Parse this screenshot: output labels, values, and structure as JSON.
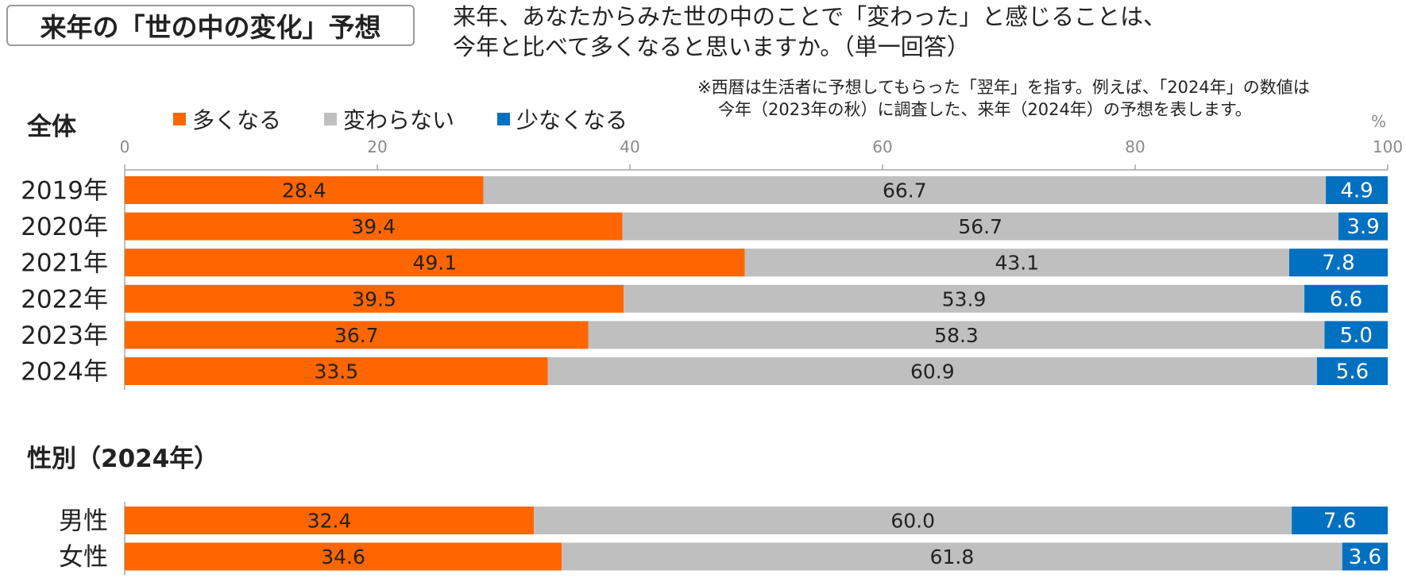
{
  "header": {
    "title": "来年の「世の中の変化」予想",
    "question_line1": "来年、あなたからみた世の中のことで「変わった」と感じることは、",
    "question_line2": "今年と比べて多くなると思いますか。（単一回答）",
    "note_line1": "※西暦は生活者に予想してもらった「翌年」を指す。例えば、「2024年」の数値は",
    "note_line2": "今年（2023年の秋）に調査した、来年（2024年）の予想を表します。"
  },
  "colors": {
    "more": "#ff6600",
    "same": "#bfbfbf",
    "less": "#0070c0",
    "axis": "#a6a6a6"
  },
  "chart_data": [
    {
      "type": "bar",
      "orientation": "horizontal",
      "stacked": true,
      "title": "全体",
      "unit": "%",
      "xlim": [
        0,
        100
      ],
      "xticks": [
        0,
        20,
        40,
        60,
        80,
        100
      ],
      "legend_position": "top",
      "categories": [
        "2019年",
        "2020年",
        "2021年",
        "2022年",
        "2023年",
        "2024年"
      ],
      "series": [
        {
          "name": "多くなる",
          "key": "more",
          "values": [
            28.4,
            39.4,
            49.1,
            39.5,
            36.7,
            33.5
          ]
        },
        {
          "name": "変わらない",
          "key": "same",
          "values": [
            66.7,
            56.7,
            43.1,
            53.9,
            58.3,
            60.9
          ]
        },
        {
          "name": "少なくなる",
          "key": "less",
          "values": [
            4.9,
            3.9,
            7.8,
            6.6,
            5.0,
            5.6
          ]
        }
      ]
    },
    {
      "type": "bar",
      "orientation": "horizontal",
      "stacked": true,
      "title": "性別（2024年）",
      "xlim": [
        0,
        100
      ],
      "categories": [
        "男性",
        "女性"
      ],
      "series": [
        {
          "name": "多くなる",
          "key": "more",
          "values": [
            32.4,
            34.6
          ]
        },
        {
          "name": "変わらない",
          "key": "same",
          "values": [
            60.0,
            61.8
          ]
        },
        {
          "name": "少なくなる",
          "key": "less",
          "values": [
            7.6,
            3.6
          ]
        }
      ]
    }
  ]
}
